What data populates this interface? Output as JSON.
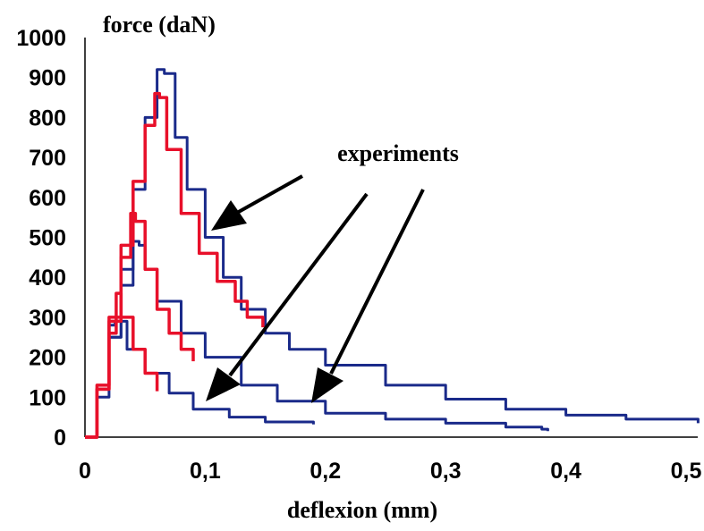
{
  "chart_data": {
    "type": "line",
    "title": "force (daN)",
    "xlabel": "deflexion (mm)",
    "ylabel": "force (daN)",
    "xlim": [
      0,
      0.5
    ],
    "ylim": [
      0,
      1000
    ],
    "x_ticks": [
      "0",
      "0,1",
      "0,2",
      "0,3",
      "0,4",
      "0,5"
    ],
    "y_ticks": [
      "0",
      "100",
      "200",
      "300",
      "400",
      "500",
      "600",
      "700",
      "800",
      "900",
      "1000"
    ],
    "annotation": "experiments",
    "grid": false,
    "colors": {
      "experiment": "#1a2a8a",
      "model": "#e8102a"
    },
    "series": [
      {
        "group": "experiment",
        "color": "#1a2a8a",
        "points": [
          [
            0,
            0
          ],
          [
            0.01,
            120
          ],
          [
            0.02,
            250
          ],
          [
            0.03,
            420
          ],
          [
            0.04,
            620
          ],
          [
            0.05,
            800
          ],
          [
            0.06,
            920
          ],
          [
            0.066,
            910
          ],
          [
            0.075,
            750
          ],
          [
            0.085,
            620
          ],
          [
            0.1,
            500
          ],
          [
            0.115,
            400
          ],
          [
            0.13,
            320
          ],
          [
            0.15,
            260
          ],
          [
            0.17,
            220
          ],
          [
            0.2,
            180
          ],
          [
            0.25,
            130
          ],
          [
            0.3,
            95
          ],
          [
            0.35,
            70
          ],
          [
            0.4,
            55
          ],
          [
            0.45,
            45
          ],
          [
            0.51,
            35
          ]
        ]
      },
      {
        "group": "experiment",
        "color": "#1a2a8a",
        "points": [
          [
            0,
            0
          ],
          [
            0.01,
            100
          ],
          [
            0.02,
            250
          ],
          [
            0.03,
            380
          ],
          [
            0.04,
            490
          ],
          [
            0.045,
            480
          ],
          [
            0.05,
            420
          ],
          [
            0.06,
            340
          ],
          [
            0.08,
            260
          ],
          [
            0.1,
            200
          ],
          [
            0.13,
            130
          ],
          [
            0.16,
            90
          ],
          [
            0.2,
            60
          ],
          [
            0.25,
            45
          ],
          [
            0.3,
            35
          ],
          [
            0.35,
            25
          ],
          [
            0.38,
            20
          ],
          [
            0.385,
            15
          ]
        ]
      },
      {
        "group": "experiment",
        "color": "#1a2a8a",
        "points": [
          [
            0,
            0
          ],
          [
            0.01,
            120
          ],
          [
            0.02,
            280
          ],
          [
            0.025,
            290
          ],
          [
            0.035,
            220
          ],
          [
            0.05,
            160
          ],
          [
            0.07,
            110
          ],
          [
            0.09,
            70
          ],
          [
            0.12,
            50
          ],
          [
            0.15,
            38
          ],
          [
            0.19,
            32
          ]
        ]
      },
      {
        "group": "model",
        "color": "#e8102a",
        "points": [
          [
            0,
            0
          ],
          [
            0.01,
            130
          ],
          [
            0.02,
            300
          ],
          [
            0.03,
            480
          ],
          [
            0.04,
            640
          ],
          [
            0.05,
            780
          ],
          [
            0.058,
            860
          ],
          [
            0.062,
            850
          ],
          [
            0.068,
            720
          ],
          [
            0.08,
            560
          ],
          [
            0.095,
            460
          ],
          [
            0.11,
            390
          ],
          [
            0.125,
            340
          ],
          [
            0.135,
            300
          ],
          [
            0.148,
            275
          ]
        ]
      },
      {
        "group": "model",
        "color": "#e8102a",
        "points": [
          [
            0,
            0
          ],
          [
            0.01,
            120
          ],
          [
            0.02,
            290
          ],
          [
            0.03,
            450
          ],
          [
            0.038,
            560
          ],
          [
            0.042,
            540
          ],
          [
            0.05,
            420
          ],
          [
            0.06,
            320
          ],
          [
            0.07,
            260
          ],
          [
            0.08,
            220
          ],
          [
            0.09,
            190
          ]
        ]
      },
      {
        "group": "model",
        "color": "#e8102a",
        "points": [
          [
            0,
            0
          ],
          [
            0.01,
            120
          ],
          [
            0.02,
            260
          ],
          [
            0.026,
            360
          ],
          [
            0.03,
            300
          ],
          [
            0.04,
            220
          ],
          [
            0.05,
            160
          ],
          [
            0.06,
            115
          ]
        ]
      }
    ]
  }
}
